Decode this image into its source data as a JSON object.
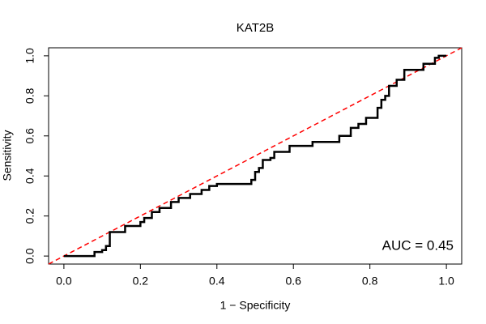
{
  "chart_data": {
    "type": "line",
    "title": "KAT2B",
    "xlabel": "1 − Specificity",
    "ylabel": "Sensitivity",
    "annotation": "AUC = 0.45",
    "x": [
      0,
      0.08,
      0.08,
      0.1,
      0.1,
      0.11,
      0.11,
      0.12,
      0.12,
      0.16,
      0.16,
      0.2,
      0.2,
      0.21,
      0.21,
      0.23,
      0.23,
      0.25,
      0.25,
      0.28,
      0.28,
      0.3,
      0.3,
      0.33,
      0.33,
      0.36,
      0.36,
      0.38,
      0.38,
      0.4,
      0.4,
      0.49,
      0.49,
      0.5,
      0.5,
      0.51,
      0.51,
      0.52,
      0.52,
      0.54,
      0.54,
      0.55,
      0.55,
      0.59,
      0.59,
      0.65,
      0.65,
      0.72,
      0.72,
      0.75,
      0.75,
      0.77,
      0.77,
      0.79,
      0.79,
      0.82,
      0.82,
      0.83,
      0.83,
      0.84,
      0.84,
      0.85,
      0.85,
      0.87,
      0.87,
      0.89,
      0.89,
      0.94,
      0.94,
      0.97,
      0.97,
      0.98,
      0.98,
      1
    ],
    "values": [
      0,
      0,
      0.02,
      0.02,
      0.03,
      0.03,
      0.05,
      0.05,
      0.12,
      0.12,
      0.15,
      0.15,
      0.17,
      0.17,
      0.19,
      0.19,
      0.22,
      0.22,
      0.24,
      0.24,
      0.27,
      0.27,
      0.29,
      0.29,
      0.31,
      0.31,
      0.33,
      0.33,
      0.35,
      0.35,
      0.36,
      0.36,
      0.38,
      0.38,
      0.42,
      0.42,
      0.44,
      0.44,
      0.48,
      0.48,
      0.49,
      0.49,
      0.52,
      0.52,
      0.55,
      0.55,
      0.57,
      0.57,
      0.6,
      0.6,
      0.64,
      0.64,
      0.66,
      0.66,
      0.69,
      0.69,
      0.74,
      0.74,
      0.78,
      0.78,
      0.8,
      0.8,
      0.85,
      0.85,
      0.88,
      0.88,
      0.93,
      0.93,
      0.96,
      0.96,
      0.99,
      0.99,
      1,
      1
    ],
    "color": "#000000",
    "reference_line_color": "#ff0000",
    "xlim": [
      -0.04,
      1.04
    ],
    "ylim": [
      -0.04,
      1.04
    ],
    "xticks": [
      {
        "value": 0,
        "label": "0.0"
      },
      0.2,
      0.4,
      0.6,
      0.8,
      {
        "value": 1,
        "label": "1.0"
      }
    ],
    "yticks": [
      {
        "value": 0,
        "label": "0.0"
      },
      0.2,
      0.4,
      0.6,
      0.8,
      {
        "value": 1,
        "label": "1.0"
      }
    ]
  }
}
